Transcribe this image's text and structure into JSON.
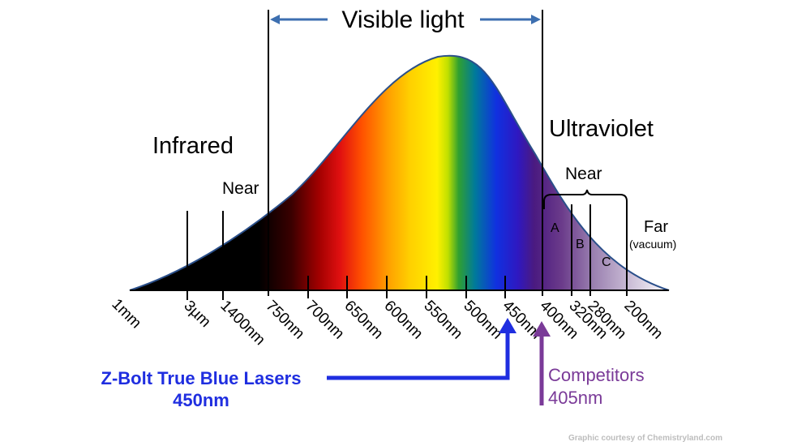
{
  "visible_label": "Visible light",
  "infrared": {
    "title": "Infrared",
    "near": "Near"
  },
  "ultraviolet": {
    "title": "Ultraviolet",
    "near": "Near",
    "bands": [
      "A",
      "B",
      "C"
    ],
    "far": "Far",
    "far_note": "(vacuum)"
  },
  "tick_labels": [
    "1mm",
    "3µm",
    "1400nm",
    "750nm",
    "700nm",
    "650nm",
    "600nm",
    "550nm",
    "500nm",
    "450nm",
    "400nm",
    "320nm",
    "280nm",
    "200nm"
  ],
  "callouts": {
    "zbolt_line1": "Z-Bolt True Blue Lasers",
    "zbolt_line2": "450nm",
    "competitors_line1": "Competitors",
    "competitors_line2": "405nm"
  },
  "credit": "Graphic courtesy of Chemistryland.com",
  "colors": {
    "zbolt": "#1f2ee0",
    "competitors": "#7a3a98",
    "curve_outline": "#2a4f8a",
    "visible_arrow": "#3d6fb0"
  }
}
